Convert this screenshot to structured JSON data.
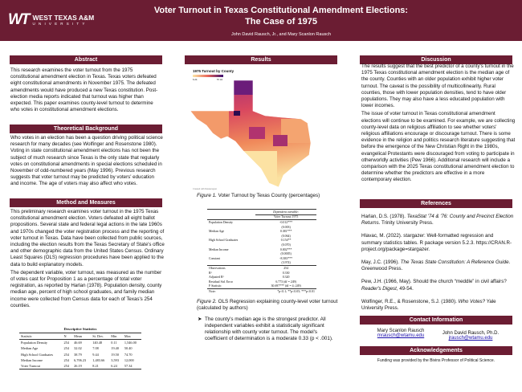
{
  "header": {
    "logo_mark": "WT",
    "logo_name": "WEST TEXAS A&M",
    "logo_sub": "UNIVERSITY",
    "title_line1": "Voter Turnout in Texas Constitutional Amendment Elections:",
    "title_line2": "The Case of 1975",
    "authors": "John David Rausch, Jr., and Mary Scanlon Rausch"
  },
  "colors": {
    "maroon": "#6b1d33",
    "map_low": "#fbe6a6",
    "map_mid": "#e8665a",
    "map_high": "#3b0f70"
  },
  "abstract": {
    "heading": "Abstract",
    "text": "This research examines the voter turnout from the 1975 constitutional amendment election in Texas. Texas voters defeated eight constitutional amendments in November 1975. The defeated amendments would have produced a new Texas constitution. Post-election media reports indicated that turnout was higher than expected. This paper examines county-level turnout to determine who votes in constitutional amendment elections."
  },
  "background": {
    "heading": "Theoretical Background",
    "text": "Who votes in an election has been a question driving political science research for many decades (see Wolfinger and Rosenstone 1980). Voting in state constitutional amendment elections has not been the subject of much research since Texas is the only state that regularly votes on constitutional amendments in special elections scheduled in November of odd-numbered years (May 1996). Previous research suggests that voter turnout may be predicted by voters' education and income. The age of voters may also affect who votes."
  },
  "method": {
    "heading": "Method and Measures",
    "p1": "This preliminary research examines voter turnout in the 1975 Texas constitutional amendment election. Voters defeated all eight ballot propositions. Several state and federal legal actions in the late 1960s and 1970s changed the voter registration process and the reporting of voter turnout in Texas. Data have been collected from public sources, including the election results from the Texas Secretary of State's office and other demographic data from the United States Census. Ordinary Least Squares (OLS) regression procedures have been applied to the data to build explanatory models.",
    "p2": "The dependent variable, voter turnout, was measured as the number of votes cast for Proposition 1 as a percentage of total voter registration, as reported by Harlan (1978). Population density, county median age, percent of high school graduates, and family median income were collected from Census data for each of Texas's 254 counties."
  },
  "descriptive": {
    "title": "Descriptive Statistics",
    "headers": [
      "Statistic",
      "N",
      "Mean",
      "St. Dev.",
      "Min",
      "Max"
    ],
    "rows": [
      [
        "Population Density",
        "254",
        "46.69",
        "140.48",
        "0.11",
        "1,546.00"
      ],
      [
        "Median Age",
        "254",
        "32.02",
        "7.08",
        "19.40",
        "50.40"
      ],
      [
        "High School Graduates",
        "254",
        "38.79",
        "9.44",
        "19.50",
        "74.70"
      ],
      [
        "Median Income",
        "254",
        "6,706.23",
        "1,483.66",
        "3,593",
        "12,000"
      ],
      [
        "Voter Turnout",
        "254",
        "26.19",
        "8.21",
        "6.24",
        "57.34"
      ]
    ]
  },
  "results": {
    "heading": "Results",
    "map_title": "1975 Turnout by County",
    "legend_min": "6.24",
    "legend_max": "57.34",
    "map_credit": "Created with Datawrapper",
    "fig1_label": "Figure 1.",
    "fig1_caption": " Voter Turnout by Texas County (percentages)",
    "reg": {
      "dep_label": "Dependent variable:",
      "dep_var": "Voter Turnout 1975",
      "rows": [
        {
          "name": "Population Density",
          "coef": "-0.012***",
          "se": "(0.003)"
        },
        {
          "name": "Median Age",
          "coef": "0.381***",
          "se": "(0.064)"
        },
        {
          "name": "High School Graduates",
          "coef": "0.154**",
          "se": "(0.070)"
        },
        {
          "name": "Median Income",
          "coef": "0.002***",
          "se": "(0.0005)"
        },
        {
          "name": "Constant",
          "coef": "-8.383***",
          "se": "(3.974)"
        }
      ],
      "stats": [
        [
          "Observations",
          "254"
        ],
        [
          "R²",
          "0.330"
        ],
        [
          "Adjusted R²",
          "0.320"
        ],
        [
          "Residual Std. Error",
          "6.773 (df = 249)"
        ],
        [
          "F Statistic",
          "30.697*** (df = 4; 249)"
        ]
      ],
      "note_label": "Note:",
      "note": "*p<0.1; **p<0.05; ***p<0.01"
    },
    "fig2_label": "Figure 2.",
    "fig2_caption": " OLS Regression explaining county-level voter turnout (calculated by authors)",
    "bullet": "The county's median age is the strongest predictor. All independent variables exhibit a statistically significant relationship with county voter turnout. The model's coefficient of determination is a moderate 0.33 (p < .001)."
  },
  "discussion": {
    "heading": "Discussion",
    "p1": "The results suggest that the best predictor of a county's turnout in the 1975 Texas constitutional amendment election is the median age of the county. Counties with an older population exhibit higher voter turnout. The caveat is the possibility of multicollinearity. Rural counties, those with lower population densities, tend to have older populations. They may also have a less educated population with lower incomes.",
    "p2": "The issue of voter turnout in Texas constitutional amendment elections will continue to be examined. For example, we are collecting county-level data on religious affiliation to see whether voters' religious affiliations encourage or discourage turnout. There is some evidence in the religion and politics research literature suggesting that before the emergence of the New Christian Right in the 1980s, evangelical Protestants were discouraged from voting to participate in otherworldly activities (Pew 1966). Additional research will include a comparison with the 2025 Texas constitutional amendment election to determine whether the predictors are effective in a more contemporary election."
  },
  "references": {
    "heading": "References",
    "items": [
      {
        "pre": "Harlan, D.S. (1978). ",
        "ital": "TexaStat '74 & '76: County and Precinct Election Returns",
        "post": ". Trinity University Press."
      },
      {
        "pre": "Hlavac, M. (2022). stargazer: Well-formatted regression and summary statistics tables. R package version 5.2.3. https://CRAN.R-project.org/package=stargazer.",
        "ital": "",
        "post": ""
      },
      {
        "pre": "May, J.C. (1996). ",
        "ital": "The Texas State Constitution: A Reference Guide",
        "post": ". Greenwood Press."
      },
      {
        "pre": "Pew, J.H. (1966, May). Should the church “meddle” in civil affairs? ",
        "ital": "Reader's Digest",
        "post": ", 49-54."
      },
      {
        "pre": "Wolfinger, R.E., & Rosenstone, S.J. (1980). ",
        "ital": "Who Votes?",
        "post": " Yale University Press."
      }
    ]
  },
  "contact": {
    "heading": "Contact Information",
    "people": [
      {
        "name": "Mary Scanlon Rausch",
        "email": "mrausch@wtamu.edu"
      },
      {
        "name": "John David Rausch, Ph.D.",
        "email": "jrausch@wtamu.edu"
      }
    ]
  },
  "ack": {
    "heading": "Acknowledgements",
    "text": "Funding was provided by the Bivins Professor of Political Science."
  }
}
